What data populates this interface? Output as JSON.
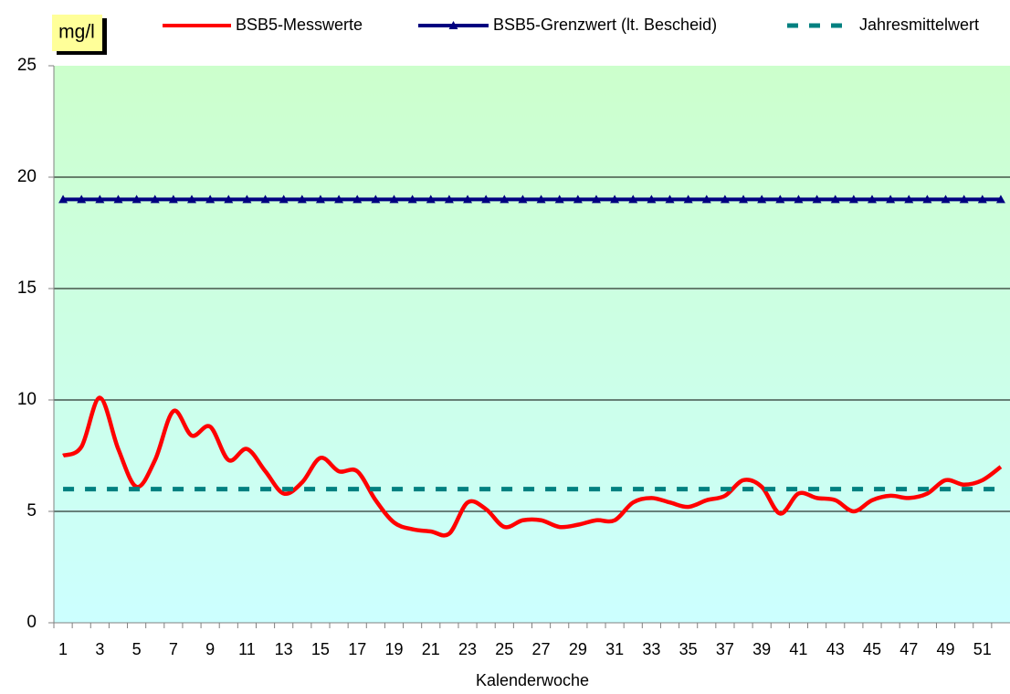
{
  "chart_data": {
    "type": "line",
    "y_label": "mg/l",
    "x_label": "Kalenderwoche",
    "categories": [
      1,
      null,
      3,
      null,
      5,
      null,
      7,
      null,
      9,
      null,
      11,
      null,
      13,
      null,
      15,
      null,
      17,
      null,
      19,
      null,
      21,
      null,
      23,
      null,
      25,
      null,
      27,
      null,
      29,
      null,
      31,
      null,
      33,
      null,
      35,
      null,
      37,
      null,
      39,
      null,
      41,
      null,
      43,
      null,
      45,
      null,
      47,
      null,
      49,
      null,
      51,
      null
    ],
    "series": [
      {
        "name": "BSB5-Messwerte",
        "color": "#ff0000",
        "style": "smooth",
        "values": [
          7.5,
          7.9,
          10.1,
          7.8,
          6.1,
          7.3,
          9.5,
          8.4,
          8.8,
          7.3,
          7.8,
          6.8,
          5.8,
          6.3,
          7.4,
          6.8,
          6.8,
          5.5,
          4.5,
          4.2,
          4.1,
          4.0,
          5.4,
          5.1,
          4.3,
          4.6,
          4.6,
          4.3,
          4.4,
          4.6,
          4.6,
          5.4,
          5.6,
          5.4,
          5.2,
          5.5,
          5.7,
          6.4,
          6.1,
          4.9,
          5.8,
          5.6,
          5.5,
          5.0,
          5.5,
          5.7,
          5.6,
          5.8,
          6.4,
          6.2,
          6.4,
          7.0
        ]
      },
      {
        "name": "BSB5-Grenzwert (lt. Bescheid)",
        "color": "#000080",
        "style": "markers",
        "values": [
          19,
          19,
          19,
          19,
          19,
          19,
          19,
          19,
          19,
          19,
          19,
          19,
          19,
          19,
          19,
          19,
          19,
          19,
          19,
          19,
          19,
          19,
          19,
          19,
          19,
          19,
          19,
          19,
          19,
          19,
          19,
          19,
          19,
          19,
          19,
          19,
          19,
          19,
          19,
          19,
          19,
          19,
          19,
          19,
          19,
          19,
          19,
          19,
          19,
          19,
          19,
          19
        ]
      },
      {
        "name": "Jahresmittelwert",
        "color": "#008080",
        "style": "dashed",
        "values": [
          6,
          6,
          6,
          6,
          6,
          6,
          6,
          6,
          6,
          6,
          6,
          6,
          6,
          6,
          6,
          6,
          6,
          6,
          6,
          6,
          6,
          6,
          6,
          6,
          6,
          6,
          6,
          6,
          6,
          6,
          6,
          6,
          6,
          6,
          6,
          6,
          6,
          6,
          6,
          6,
          6,
          6,
          6,
          6,
          6,
          6,
          6,
          6,
          6,
          6,
          6,
          6
        ]
      }
    ],
    "ylim": [
      0,
      25
    ],
    "yticks": [
      0,
      5,
      10,
      15,
      20,
      25
    ],
    "grid": true
  }
}
